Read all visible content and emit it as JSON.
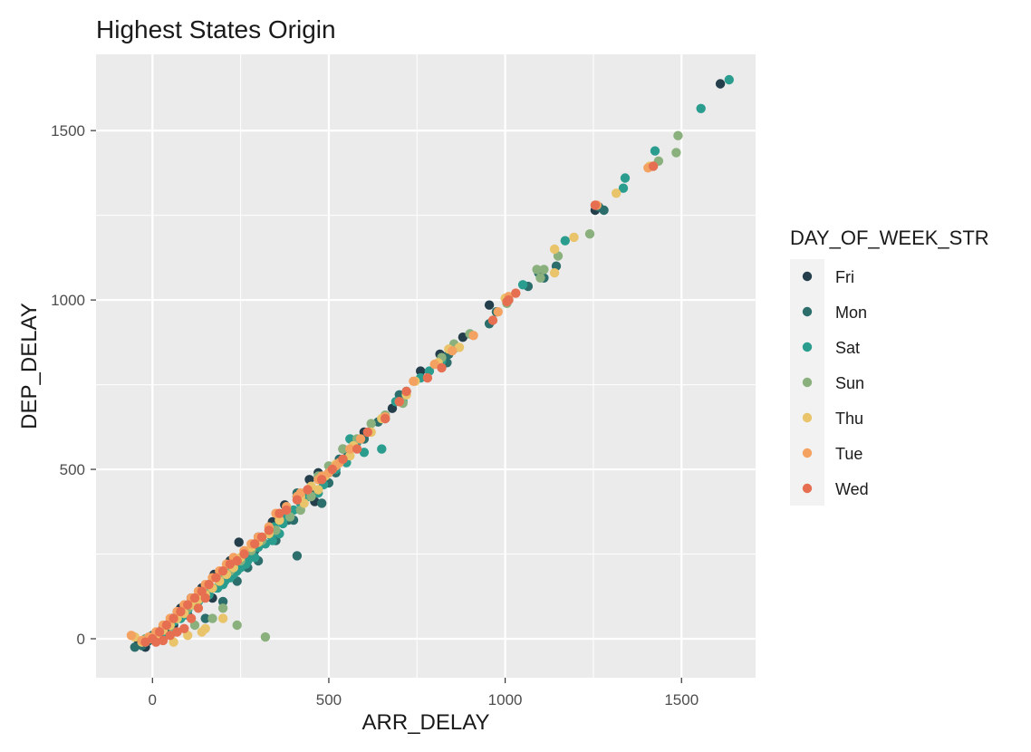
{
  "chart_data": {
    "type": "scatter",
    "title": "Highest States Origin",
    "xlabel": "ARR_DELAY",
    "ylabel": "DEP_DELAY",
    "xlim": [
      -160,
      1710
    ],
    "ylim": [
      -115,
      1725
    ],
    "x_ticks": [
      0,
      500,
      1000,
      1500
    ],
    "y_ticks": [
      0,
      500,
      1000,
      1500
    ],
    "x_tick_labels": [
      "0",
      "500",
      "1000",
      "1500"
    ],
    "y_tick_labels": [
      "0",
      "500",
      "1000",
      "1500"
    ],
    "grid": true,
    "background": "#ebebeb",
    "legend": {
      "title": "DAY_OF_WEEK_STR",
      "position": "right"
    },
    "series": [
      {
        "name": "Fri",
        "color": "#243e4b",
        "points": [
          [
            1610,
            1638
          ],
          [
            1255,
            1265
          ],
          [
            955,
            985
          ],
          [
            880,
            890
          ],
          [
            815,
            840
          ],
          [
            760,
            790
          ],
          [
            680,
            680
          ],
          [
            600,
            610
          ],
          [
            540,
            560
          ],
          [
            470,
            490
          ],
          [
            445,
            470
          ],
          [
            410,
            420
          ],
          [
            460,
            405
          ],
          [
            375,
            395
          ],
          [
            340,
            345
          ],
          [
            300,
            300
          ],
          [
            245,
            285
          ],
          [
            220,
            230
          ],
          [
            175,
            190
          ],
          [
            140,
            150
          ],
          [
            110,
            120
          ],
          [
            80,
            90
          ],
          [
            55,
            60
          ],
          [
            30,
            35
          ],
          [
            10,
            15
          ],
          [
            0,
            0
          ],
          [
            -40,
            -15
          ],
          [
            -20,
            -25
          ],
          [
            -10,
            -5
          ],
          [
            60,
            40
          ],
          [
            100,
            70
          ],
          [
            170,
            120
          ]
        ]
      },
      {
        "name": "Mon",
        "color": "#2c6e6c",
        "points": [
          [
            1280,
            1265
          ],
          [
            1265,
            1275
          ],
          [
            1145,
            1100
          ],
          [
            1110,
            1065
          ],
          [
            1095,
            1080
          ],
          [
            1065,
            1040
          ],
          [
            975,
            965
          ],
          [
            955,
            930
          ],
          [
            840,
            840
          ],
          [
            835,
            815
          ],
          [
            700,
            720
          ],
          [
            660,
            650
          ],
          [
            640,
            640
          ],
          [
            600,
            590
          ],
          [
            555,
            545
          ],
          [
            530,
            530
          ],
          [
            520,
            490
          ],
          [
            500,
            460
          ],
          [
            480,
            400
          ],
          [
            450,
            440
          ],
          [
            410,
            430
          ],
          [
            400,
            350
          ],
          [
            385,
            350
          ],
          [
            350,
            290
          ],
          [
            290,
            260
          ],
          [
            250,
            230
          ],
          [
            220,
            200
          ],
          [
            200,
            180
          ],
          [
            160,
            160
          ],
          [
            140,
            130
          ],
          [
            120,
            110
          ],
          [
            100,
            90
          ],
          [
            80,
            70
          ],
          [
            60,
            55
          ],
          [
            40,
            35
          ],
          [
            20,
            20
          ],
          [
            0,
            10
          ],
          [
            -10,
            -5
          ],
          [
            -30,
            -20
          ],
          [
            -50,
            -25
          ],
          [
            410,
            245
          ],
          [
            300,
            230
          ],
          [
            270,
            210
          ],
          [
            240,
            170
          ],
          [
            200,
            110
          ],
          [
            150,
            60
          ]
        ]
      },
      {
        "name": "Sat",
        "color": "#2a9d8f",
        "points": [
          [
            1635,
            1650
          ],
          [
            1555,
            1565
          ],
          [
            1425,
            1440
          ],
          [
            1340,
            1360
          ],
          [
            1335,
            1330
          ],
          [
            1170,
            1175
          ],
          [
            1050,
            1045
          ],
          [
            1010,
            1000
          ],
          [
            900,
            900
          ],
          [
            860,
            860
          ],
          [
            820,
            820
          ],
          [
            785,
            790
          ],
          [
            760,
            770
          ],
          [
            720,
            730
          ],
          [
            710,
            700
          ],
          [
            690,
            700
          ],
          [
            650,
            560
          ],
          [
            580,
            580
          ],
          [
            600,
            550
          ],
          [
            560,
            590
          ],
          [
            550,
            520
          ],
          [
            520,
            500
          ],
          [
            500,
            490
          ],
          [
            485,
            455
          ],
          [
            470,
            430
          ],
          [
            440,
            420
          ],
          [
            420,
            400
          ],
          [
            400,
            380
          ],
          [
            370,
            340
          ],
          [
            360,
            310
          ],
          [
            340,
            290
          ],
          [
            320,
            280
          ],
          [
            300,
            270
          ],
          [
            280,
            250
          ],
          [
            270,
            230
          ],
          [
            250,
            210
          ],
          [
            240,
            200
          ],
          [
            220,
            180
          ],
          [
            200,
            160
          ],
          [
            180,
            150
          ],
          [
            160,
            130
          ],
          [
            140,
            120
          ],
          [
            120,
            100
          ],
          [
            100,
            85
          ],
          [
            80,
            60
          ],
          [
            60,
            50
          ],
          [
            40,
            40
          ],
          [
            20,
            20
          ],
          [
            0,
            5
          ],
          [
            -20,
            -10
          ],
          [
            380,
            360
          ],
          [
            345,
            330
          ],
          [
            335,
            305
          ],
          [
            310,
            290
          ],
          [
            290,
            240
          ],
          [
            265,
            220
          ],
          [
            230,
            190
          ],
          [
            205,
            170
          ],
          [
            185,
            150
          ],
          [
            130,
            110
          ],
          [
            90,
            70
          ],
          [
            30,
            10
          ]
        ]
      },
      {
        "name": "Sun",
        "color": "#8ab17d",
        "points": [
          [
            1490,
            1485
          ],
          [
            1485,
            1435
          ],
          [
            1435,
            1410
          ],
          [
            1420,
            1395
          ],
          [
            1240,
            1195
          ],
          [
            1150,
            1130
          ],
          [
            1110,
            1090
          ],
          [
            1100,
            1065
          ],
          [
            1090,
            1090
          ],
          [
            1005,
            990
          ],
          [
            900,
            900
          ],
          [
            855,
            870
          ],
          [
            820,
            830
          ],
          [
            710,
            695
          ],
          [
            660,
            660
          ],
          [
            620,
            635
          ],
          [
            580,
            590
          ],
          [
            540,
            560
          ],
          [
            500,
            510
          ],
          [
            470,
            480
          ],
          [
            450,
            420
          ],
          [
            420,
            380
          ],
          [
            390,
            360
          ],
          [
            350,
            320
          ],
          [
            310,
            290
          ],
          [
            280,
            260
          ],
          [
            250,
            230
          ],
          [
            220,
            200
          ],
          [
            190,
            180
          ],
          [
            160,
            150
          ],
          [
            130,
            120
          ],
          [
            100,
            90
          ],
          [
            70,
            60
          ],
          [
            40,
            40
          ],
          [
            10,
            10
          ],
          [
            -20,
            0
          ],
          [
            320,
            5
          ],
          [
            240,
            40
          ],
          [
            200,
            90
          ],
          [
            170,
            60
          ],
          [
            120,
            40
          ],
          [
            60,
            20
          ]
        ]
      },
      {
        "name": "Thu",
        "color": "#e9c46a",
        "points": [
          [
            1410,
            1395
          ],
          [
            1315,
            1315
          ],
          [
            1195,
            1185
          ],
          [
            1140,
            1150
          ],
          [
            1140,
            1080
          ],
          [
            1000,
            1005
          ],
          [
            870,
            860
          ],
          [
            840,
            855
          ],
          [
            810,
            815
          ],
          [
            745,
            760
          ],
          [
            720,
            720
          ],
          [
            650,
            650
          ],
          [
            620,
            610
          ],
          [
            570,
            570
          ],
          [
            520,
            515
          ],
          [
            510,
            500
          ],
          [
            490,
            480
          ],
          [
            450,
            450
          ],
          [
            420,
            420
          ],
          [
            380,
            380
          ],
          [
            360,
            350
          ],
          [
            330,
            310
          ],
          [
            300,
            285
          ],
          [
            280,
            270
          ],
          [
            250,
            240
          ],
          [
            230,
            210
          ],
          [
            210,
            190
          ],
          [
            190,
            170
          ],
          [
            170,
            150
          ],
          [
            150,
            130
          ],
          [
            130,
            115
          ],
          [
            110,
            100
          ],
          [
            90,
            75
          ],
          [
            70,
            60
          ],
          [
            50,
            40
          ],
          [
            30,
            25
          ],
          [
            10,
            10
          ],
          [
            -10,
            0
          ],
          [
            -30,
            -10
          ],
          [
            -50,
            5
          ],
          [
            200,
            60
          ],
          [
            150,
            30
          ],
          [
            140,
            20
          ],
          [
            100,
            10
          ],
          [
            60,
            -10
          ],
          [
            560,
            540
          ],
          [
            470,
            440
          ],
          [
            430,
            400
          ]
        ]
      },
      {
        "name": "Tue",
        "color": "#f4a261",
        "points": [
          [
            1405,
            1390
          ],
          [
            1260,
            1280
          ],
          [
            1010,
            1010
          ],
          [
            980,
            965
          ],
          [
            910,
            895
          ],
          [
            850,
            850
          ],
          [
            800,
            810
          ],
          [
            740,
            760
          ],
          [
            700,
            700
          ],
          [
            660,
            655
          ],
          [
            590,
            590
          ],
          [
            560,
            560
          ],
          [
            520,
            510
          ],
          [
            500,
            490
          ],
          [
            470,
            470
          ],
          [
            440,
            440
          ],
          [
            410,
            420
          ],
          [
            380,
            390
          ],
          [
            350,
            370
          ],
          [
            330,
            330
          ],
          [
            300,
            300
          ],
          [
            280,
            280
          ],
          [
            260,
            260
          ],
          [
            230,
            240
          ],
          [
            210,
            220
          ],
          [
            190,
            200
          ],
          [
            170,
            180
          ],
          [
            150,
            160
          ],
          [
            130,
            140
          ],
          [
            110,
            120
          ],
          [
            90,
            100
          ],
          [
            70,
            80
          ],
          [
            50,
            60
          ],
          [
            30,
            40
          ],
          [
            10,
            20
          ],
          [
            -10,
            5
          ],
          [
            -30,
            -5
          ],
          [
            -60,
            10
          ],
          [
            530,
            520
          ],
          [
            480,
            480
          ],
          [
            420,
            430
          ]
        ]
      },
      {
        "name": "Wed",
        "color": "#e76f51",
        "points": [
          [
            1420,
            1395
          ],
          [
            1255,
            1280
          ],
          [
            1030,
            1020
          ],
          [
            1005,
            995
          ],
          [
            1010,
            1000
          ],
          [
            965,
            940
          ],
          [
            820,
            800
          ],
          [
            780,
            770
          ],
          [
            720,
            730
          ],
          [
            700,
            700
          ],
          [
            660,
            650
          ],
          [
            610,
            610
          ],
          [
            580,
            560
          ],
          [
            540,
            530
          ],
          [
            510,
            500
          ],
          [
            480,
            470
          ],
          [
            440,
            440
          ],
          [
            410,
            410
          ],
          [
            380,
            380
          ],
          [
            360,
            370
          ],
          [
            330,
            320
          ],
          [
            310,
            300
          ],
          [
            290,
            280
          ],
          [
            260,
            250
          ],
          [
            240,
            230
          ],
          [
            220,
            220
          ],
          [
            200,
            200
          ],
          [
            180,
            180
          ],
          [
            160,
            160
          ],
          [
            140,
            140
          ],
          [
            120,
            120
          ],
          [
            100,
            100
          ],
          [
            80,
            80
          ],
          [
            60,
            60
          ],
          [
            40,
            40
          ],
          [
            20,
            20
          ],
          [
            0,
            0
          ],
          [
            -20,
            -10
          ],
          [
            150,
            120
          ],
          [
            130,
            90
          ],
          [
            110,
            60
          ],
          [
            90,
            30
          ],
          [
            70,
            20
          ],
          [
            50,
            10
          ],
          [
            30,
            -5
          ],
          [
            10,
            -10
          ]
        ]
      }
    ]
  }
}
